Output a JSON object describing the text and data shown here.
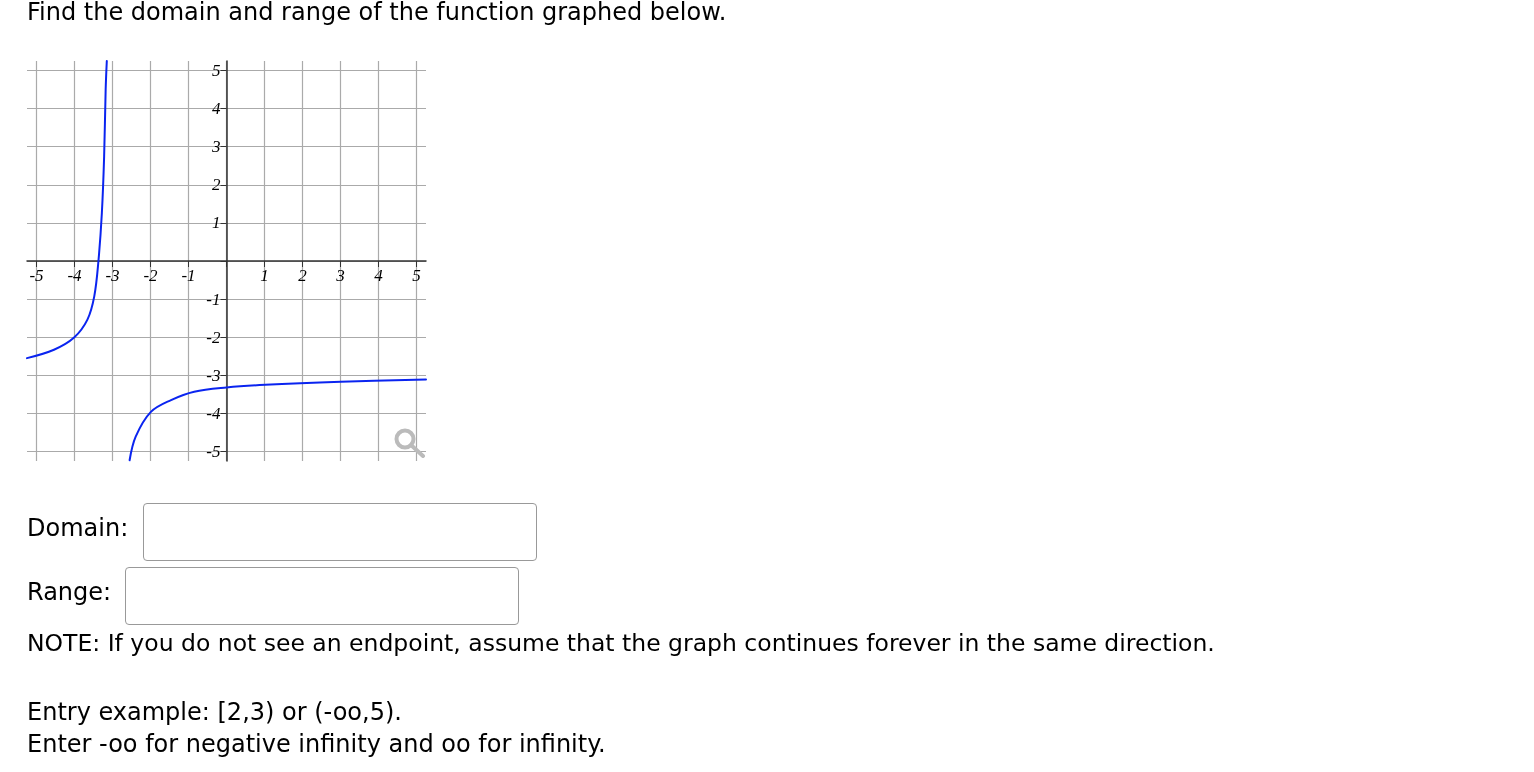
{
  "chart_data": {
    "type": "line",
    "title": "Find the domain and range of the function graphed below.",
    "annotations": [
      "Domain:",
      "Range:",
      "NOTE: If you do not see an endpoint, assume that the graph continues forever in the same direction.",
      "Entry example: [2,3) or (-oo,5).",
      "Enter -oo for negative infinity and oo for infinity."
    ],
    "xlim": [
      -5.25,
      5.25
    ],
    "ylim": [
      -5.25,
      5.25
    ],
    "xticks": [
      -5,
      -4,
      -3,
      -2,
      -1,
      {
        "value": 0,
        "label": null
      },
      1,
      2,
      3,
      4,
      5
    ],
    "yticks": [
      -5,
      -4,
      -3,
      -2,
      -1,
      {
        "value": 0,
        "label": null
      },
      1,
      2,
      3,
      4,
      5
    ],
    "grid": true,
    "marker": "none",
    "line_style": "solid",
    "series": [
      {
        "color": "#0a24f0",
        "x": [
          -5.25,
          -4.54,
          -4.01,
          -3.66,
          -3.48,
          -3.37,
          -3.28,
          -3.22,
          -3.18,
          -3.15
        ],
        "values": [
          -2.55,
          -2.33,
          -2.01,
          -1.54,
          -0.93,
          0,
          1.26,
          2.75,
          4.5,
          5.25
        ]
      },
      {
        "color": "#0a24f0",
        "x": [
          -2.55,
          -2.39,
          -1.99,
          -1.46,
          -0.85,
          0,
          1.02,
          3.01,
          5.25
        ],
        "values": [
          -5.23,
          -4.61,
          -3.96,
          -3.65,
          -3.43,
          -3.32,
          -3.25,
          -3.17,
          -3.11
        ]
      }
    ]
  }
}
